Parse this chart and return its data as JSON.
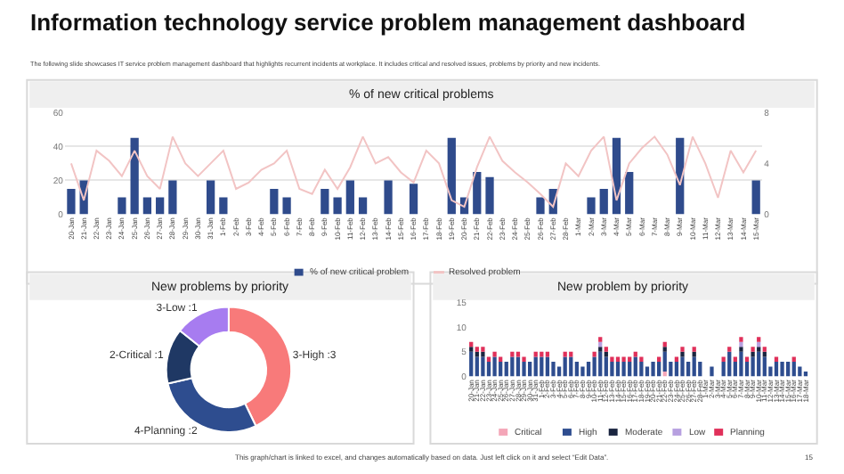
{
  "chart_data": [
    {
      "type": "bar",
      "title": "% of new critical problems",
      "annotations": [
        "Information technology service problem management dashboard",
        "The following slide showcases IT service problem management dashboard that highlights recurrent incidents at workplace. It includes critical and resolved issues, problems by priority and new incidents."
      ],
      "categories": [
        "20-Jan",
        "21-Jan",
        "22-Jan",
        "23-Jan",
        "24-Jan",
        "25-Jan",
        "26-Jan",
        "27-Jan",
        "28-Jan",
        "29-Jan",
        "30-Jan",
        "31-Jan",
        "1-Feb",
        "2-Feb",
        "3-Feb",
        "4-Feb",
        "5-Feb",
        "6-Feb",
        "7-Feb",
        "8-Feb",
        "9-Feb",
        "10-Feb",
        "11-Feb",
        "12-Feb",
        "13-Feb",
        "14-Feb",
        "15-Feb",
        "16-Feb",
        "17-Feb",
        "18-Feb",
        "19-Feb",
        "20-Feb",
        "21-Feb",
        "22-Feb",
        "23-Feb",
        "24-Feb",
        "25-Feb",
        "26-Feb",
        "27-Feb",
        "28-Feb",
        "1-Mar",
        "2-Mar",
        "3-Mar",
        "4-Mar",
        "5-Mar",
        "6-Mar",
        "7-Mar",
        "8-Mar",
        "9-Mar",
        "10-Mar",
        "11-Mar",
        "12-Mar",
        "13-Mar",
        "14-Mar",
        "15-Mar"
      ],
      "series": [
        {
          "name": "% of new critical problem",
          "type": "bar",
          "color": "#2f4b8c",
          "values": [
            15,
            20,
            0,
            0,
            10,
            45,
            10,
            10,
            20,
            0,
            0,
            20,
            10,
            0,
            0,
            0,
            15,
            10,
            0,
            0,
            15,
            10,
            20,
            10,
            0,
            20,
            0,
            18,
            0,
            0,
            45,
            10,
            25,
            22,
            0,
            0,
            0,
            10,
            15,
            0,
            0,
            10,
            15,
            45,
            25,
            0,
            0,
            0,
            45,
            0,
            0,
            0,
            0,
            0,
            20
          ]
        },
        {
          "name": "Resolved problem",
          "type": "line",
          "axis": "y2",
          "color": "#f2c4c4",
          "values": [
            4.0,
            1.1,
            5.0,
            4.2,
            3.0,
            5.0,
            3.0,
            2.0,
            6.1,
            4.0,
            3.0,
            4.0,
            5.0,
            2.0,
            2.5,
            3.5,
            4.0,
            5.0,
            2.0,
            1.6,
            3.5,
            2.0,
            3.7,
            6.1,
            4.0,
            4.5,
            3.3,
            2.5,
            5.0,
            4.0,
            1.1,
            0.6,
            3.7,
            6.1,
            4.2,
            3.3,
            2.5,
            1.6,
            0.6,
            4.0,
            3.0,
            5.0,
            6.1,
            1.1,
            4.0,
            5.2,
            6.1,
            4.7,
            2.3,
            6.1,
            4.0,
            1.3,
            5.0,
            3.3,
            5.0
          ]
        }
      ],
      "ylim": [
        0,
        60
      ],
      "yticks": [
        0,
        20,
        40,
        60
      ],
      "y2lim": [
        0,
        8
      ],
      "y2ticks": [
        0,
        4,
        8
      ],
      "grid": "y",
      "legend": "bottom"
    },
    {
      "type": "donut",
      "title": "New problems by priority",
      "values": [
        3,
        2,
        1,
        1
      ],
      "colors": [
        "#f87a7a",
        "#2e4d8f",
        "#1f3864",
        "#a77cf0"
      ],
      "value_labels": [
        "3-High :3",
        "4-Planning :2",
        "2-Critical :1",
        "3-Low :1"
      ]
    },
    {
      "type": "bar",
      "title": "New problem by priority",
      "stacked": true,
      "annotations": [
        "This graph/chart is linked to excel, and changes automatically based on data. Just left click on it and select “Edit Data”.",
        "15"
      ],
      "categories": [
        "20-Jan",
        "21-Jan",
        "22-Jan",
        "23-Jan",
        "24-Jan",
        "25-Jan",
        "26-Jan",
        "27-Jan",
        "28-Jan",
        "29-Jan",
        "30-Jan",
        "31-Jan",
        "1-Feb",
        "2-Feb",
        "3-Feb",
        "4-Feb",
        "5-Feb",
        "6-Feb",
        "7-Feb",
        "8-Feb",
        "9-Feb",
        "10-Feb",
        "11-Feb",
        "12-Feb",
        "13-Feb",
        "14-Feb",
        "15-Feb",
        "16-Feb",
        "17-Feb",
        "18-Feb",
        "19-Feb",
        "20-Feb",
        "21-Feb",
        "22-Feb",
        "23-Feb",
        "24-Feb",
        "25-Feb",
        "26-Feb",
        "27-Feb",
        "28-Feb",
        "1-Mar",
        "2-Mar",
        "3-Mar",
        "4-Mar",
        "5-Mar",
        "6-Mar",
        "7-Mar",
        "8-Mar",
        "9-Mar",
        "10-Mar",
        "11-Mar",
        "12-Mar",
        "13-Mar",
        "14-Mar",
        "15-Mar",
        "16-Mar",
        "17-Mar",
        "18-Mar"
      ],
      "series": [
        {
          "name": "Critical",
          "color": "#f4a6b8",
          "values": [
            0,
            0,
            0,
            0,
            0,
            0,
            0,
            0,
            0,
            0,
            0,
            0,
            0,
            0,
            0,
            0,
            0,
            0,
            0,
            0,
            0,
            0,
            0,
            0,
            0,
            0,
            0,
            0,
            0,
            0,
            0,
            0,
            0,
            1,
            0,
            0,
            0,
            0,
            0,
            0,
            0,
            0,
            0,
            0,
            0,
            0,
            0,
            0,
            0,
            0,
            0,
            0,
            0,
            0,
            0,
            0,
            0,
            0
          ]
        },
        {
          "name": "High",
          "color": "#2e4d8f",
          "values": [
            5,
            4,
            4,
            3,
            4,
            3,
            3,
            4,
            4,
            3,
            3,
            4,
            4,
            4,
            3,
            2,
            4,
            4,
            3,
            2,
            3,
            4,
            5,
            4,
            3,
            3,
            3,
            3,
            4,
            3,
            2,
            3,
            3,
            4,
            3,
            3,
            4,
            3,
            4,
            3,
            0,
            2,
            0,
            3,
            5,
            3,
            5,
            3,
            4,
            5,
            4,
            2,
            3,
            3,
            3,
            3,
            2,
            1
          ]
        },
        {
          "name": "Moderate",
          "color": "#1a2540",
          "values": [
            1,
            1,
            1,
            0,
            0,
            0,
            0,
            0,
            0,
            0,
            0,
            0,
            0,
            0,
            0,
            0,
            0,
            0,
            0,
            0,
            0,
            0,
            1,
            1,
            0,
            0,
            0,
            0,
            0,
            0,
            0,
            0,
            0,
            1,
            0,
            0,
            1,
            0,
            1,
            0,
            0,
            0,
            0,
            0,
            0,
            0,
            1,
            0,
            1,
            1,
            1,
            0,
            0,
            0,
            0,
            0,
            0,
            0
          ]
        },
        {
          "name": "Low",
          "color": "#b7a0e0",
          "values": [
            0,
            0,
            0,
            0,
            0,
            0,
            0,
            0,
            0,
            0,
            0,
            0,
            0,
            0,
            0,
            0,
            0,
            0,
            0,
            0,
            0,
            0,
            1,
            0,
            0,
            0,
            0,
            0,
            0,
            0,
            0,
            0,
            0,
            0,
            0,
            0,
            0,
            0,
            0,
            0,
            0,
            0,
            0,
            0,
            0,
            0,
            1,
            0,
            0,
            1,
            0,
            0,
            0,
            0,
            0,
            0,
            0,
            0
          ]
        },
        {
          "name": "Planning",
          "color": "#e0305a",
          "values": [
            1,
            1,
            1,
            1,
            1,
            1,
            0,
            1,
            1,
            1,
            0,
            1,
            1,
            1,
            0,
            0,
            1,
            1,
            0,
            0,
            0,
            1,
            1,
            1,
            1,
            1,
            1,
            1,
            1,
            1,
            0,
            0,
            1,
            1,
            0,
            1,
            1,
            0,
            1,
            0,
            0,
            0,
            0,
            1,
            1,
            1,
            1,
            1,
            1,
            1,
            1,
            0,
            1,
            0,
            0,
            1,
            0,
            0
          ]
        }
      ],
      "ylim": [
        0,
        15
      ],
      "yticks": [
        0,
        5,
        10,
        15
      ],
      "legend": "bottom"
    }
  ]
}
